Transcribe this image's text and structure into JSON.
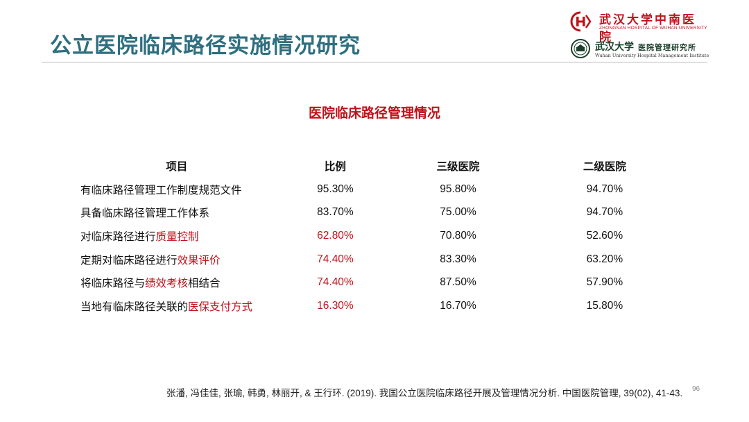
{
  "slide_title": "公立医院临床路径实施情况研究",
  "logos": {
    "hospital_cn": "武汉大学中南医院",
    "hospital_en": "ZHONGNAN HOSPITAL OF WUHAN UNIVERSITY",
    "institute_cn_univ": "武汉大学",
    "institute_cn_name": "医院管理研究所",
    "institute_en": "Wuhan University Hospital Management Institute"
  },
  "table": {
    "title": "医院临床路径管理情况",
    "headers": [
      "项目",
      "比例",
      "三级医院",
      "二级医院"
    ],
    "rows": [
      {
        "item_plain": "有临床路径管理工作制度规范文件",
        "item_highlight": "",
        "item_suffix": "",
        "ratio": "95.30%",
        "tier3": "95.80%",
        "tier2": "94.70%",
        "highlight": false
      },
      {
        "item_plain": "具备临床路径管理工作体系",
        "item_highlight": "",
        "item_suffix": "",
        "ratio": "83.70%",
        "tier3": "75.00%",
        "tier2": "94.70%",
        "highlight": false
      },
      {
        "item_plain": "对临床路径进行",
        "item_highlight": "质量控制",
        "item_suffix": "",
        "ratio": "62.80%",
        "tier3": "70.80%",
        "tier2": "52.60%",
        "highlight": true
      },
      {
        "item_plain": "定期对临床路径进行",
        "item_highlight": "效果评价",
        "item_suffix": "",
        "ratio": "74.40%",
        "tier3": "83.30%",
        "tier2": "63.20%",
        "highlight": true
      },
      {
        "item_plain": "将临床路径与",
        "item_highlight": "绩效考核",
        "item_suffix": "相结合",
        "ratio": "74.40%",
        "tier3": "87.50%",
        "tier2": "57.90%",
        "highlight": true
      },
      {
        "item_plain": "当地有临床路径关联的",
        "item_highlight": "医保支付方式",
        "item_suffix": "",
        "ratio": "16.30%",
        "tier3": "16.70%",
        "tier2": "15.80%",
        "highlight": true
      }
    ]
  },
  "citation": "张潘, 冯佳佳, 张瑜, 韩勇, 林丽开, & 王行环. (2019). 我国公立医院临床路径开展及管理情况分析. 中国医院管理, 39(02), 41-43.",
  "page_number": "96",
  "colors": {
    "title": "#2e6f80",
    "accent_red": "#c0111a"
  }
}
